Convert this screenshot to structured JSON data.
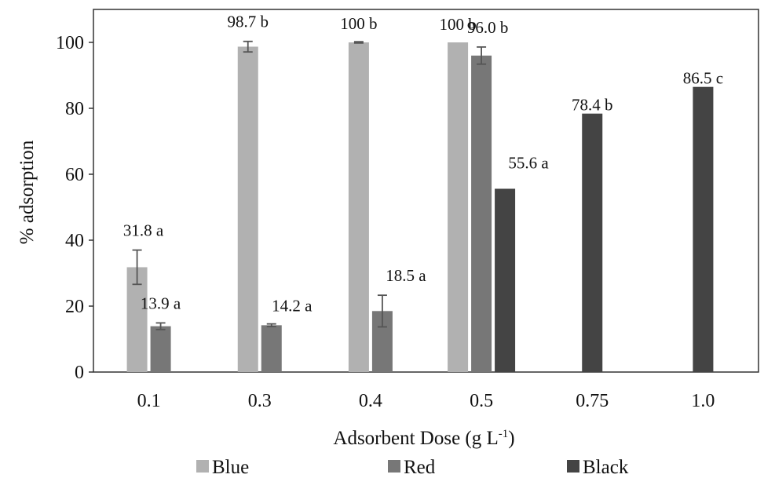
{
  "chart_data": {
    "type": "bar",
    "title": "",
    "xlabel": "Adsorbent Dose (g L",
    "xlabel_sup": "-1",
    "xlabel_end": ")",
    "ylabel": "% adsorption",
    "ylim": [
      0,
      110
    ],
    "yticks": [
      0,
      20,
      40,
      60,
      80,
      100
    ],
    "grid": false,
    "legend_position": "bottom",
    "categories": [
      "0.1",
      "0.3",
      "0.4",
      "0.5",
      "0.75",
      "1.0"
    ],
    "series": [
      {
        "name": "Blue",
        "color": "#b1b1b1",
        "values": [
          31.8,
          98.7,
          100,
          100,
          null,
          null
        ],
        "errors": [
          5.2,
          1.6,
          0.2,
          0,
          null,
          null
        ],
        "labels": [
          "31.8 a",
          "98.7 b",
          "100 b",
          "100 b",
          null,
          null
        ]
      },
      {
        "name": "Red",
        "color": "#777777",
        "values": [
          13.9,
          14.2,
          18.5,
          96.0,
          null,
          null
        ],
        "errors": [
          1.0,
          0.4,
          4.8,
          2.6,
          null,
          null
        ],
        "labels": [
          "13.9 a",
          "14.2 a",
          "18.5 a",
          "96.0 b",
          null,
          null
        ]
      },
      {
        "name": "Black",
        "color": "#444444",
        "values": [
          null,
          null,
          null,
          55.6,
          78.4,
          86.5
        ],
        "errors": [
          null,
          null,
          null,
          0,
          0,
          0
        ],
        "labels": [
          null,
          null,
          null,
          "55.6 a",
          "78.4 b",
          "86.5 c"
        ]
      }
    ]
  }
}
